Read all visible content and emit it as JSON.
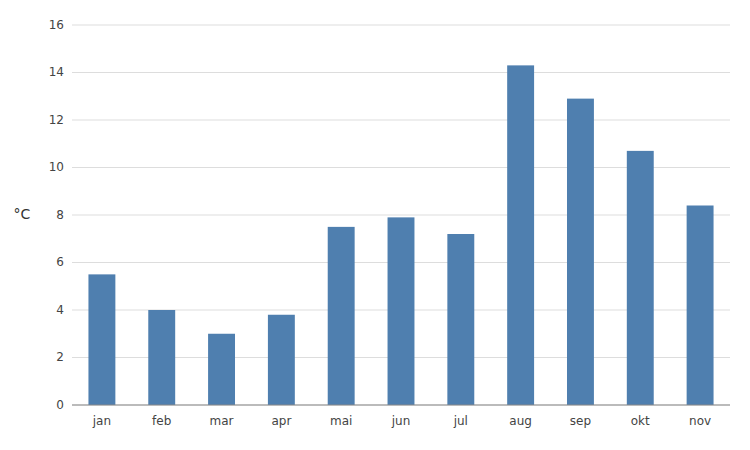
{
  "chart_data": {
    "type": "bar",
    "ylabel": "°C",
    "categories": [
      "jan",
      "feb",
      "mar",
      "apr",
      "mai",
      "jun",
      "jul",
      "aug",
      "sep",
      "okt",
      "nov"
    ],
    "values": [
      5.5,
      4.0,
      3.0,
      3.8,
      7.5,
      7.9,
      7.2,
      14.3,
      12.9,
      10.7,
      8.4
    ],
    "color": "#4f7faf",
    "ylim": [
      0,
      16
    ],
    "yticks": [
      0,
      2,
      4,
      6,
      8,
      10,
      12,
      14,
      16
    ],
    "grid": true
  }
}
